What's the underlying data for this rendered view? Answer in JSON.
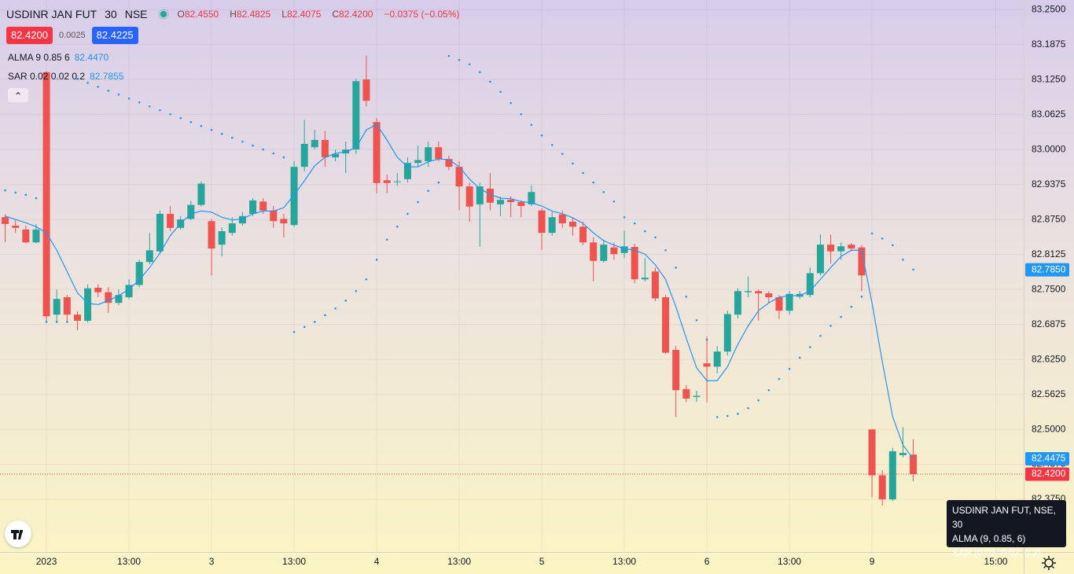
{
  "header": {
    "symbol": "USDINR JAN FUT",
    "interval": "30",
    "exchange": "NSE",
    "ohlc": [
      {
        "key": "O",
        "label": "82.4550"
      },
      {
        "key": "H",
        "label": "82.4825"
      },
      {
        "key": "L",
        "label": "82.4075"
      },
      {
        "key": "C",
        "label": "82.4200"
      }
    ],
    "change": "−0.0375 (−0.05%)"
  },
  "trade": {
    "sell": "82.4200",
    "spread": "0.0025",
    "buy": "82.4225"
  },
  "tooltip": [
    "USDINR JAN FUT, NSE, 30",
    "ALMA (9, 0.85, 6)",
    "SAR (0.02, 0.02, 0.2)"
  ],
  "chart_data": {
    "type": "candlestick",
    "up_color": "#26a69a",
    "down_color": "#ef5350",
    "grid": true,
    "xlim": [
      -4.5,
      94.7
    ],
    "ylim": [
      82.281,
      83.267
    ],
    "xticks": [
      {
        "value": 0,
        "label": "2023"
      },
      {
        "value": 8,
        "label": "13:00"
      },
      {
        "value": 16,
        "label": "3"
      },
      {
        "value": 24,
        "label": "13:00"
      },
      {
        "value": 32,
        "label": "4"
      },
      {
        "value": 40,
        "label": "13:00"
      },
      {
        "value": 48,
        "label": "5"
      },
      {
        "value": 56,
        "label": "13:00"
      },
      {
        "value": 64,
        "label": "6"
      },
      {
        "value": 72,
        "label": "13:00"
      },
      {
        "value": 80,
        "label": "9"
      },
      {
        "value": 92,
        "label": "15:00"
      }
    ],
    "yticks": [
      {
        "value": 83.25,
        "label": "83.2500"
      },
      {
        "value": 83.1875,
        "label": "83.1875"
      },
      {
        "value": 83.125,
        "label": "83.1250"
      },
      {
        "value": 83.0625,
        "label": "83.0625"
      },
      {
        "value": 83.0,
        "label": "83.0000"
      },
      {
        "value": 82.9375,
        "label": "82.9375"
      },
      {
        "value": 82.875,
        "label": "82.8750"
      },
      {
        "value": 82.8125,
        "label": "82.8125"
      },
      {
        "value": 82.75,
        "label": "82.7500"
      },
      {
        "value": 82.6875,
        "label": "82.6875"
      },
      {
        "value": 82.625,
        "label": "82.6250"
      },
      {
        "value": 82.5625,
        "label": "82.5625"
      },
      {
        "value": 82.5,
        "label": "82.5000"
      },
      {
        "value": 82.4375,
        "label": "82.4375"
      },
      {
        "value": 82.375,
        "label": "82.3750"
      }
    ],
    "x": [
      -4,
      -3,
      -2,
      -1,
      0,
      1,
      2,
      3,
      4,
      5,
      6,
      7,
      8,
      9,
      10,
      11,
      12,
      13,
      14,
      15,
      16,
      17,
      18,
      19,
      20,
      21,
      22,
      23,
      24,
      25,
      26,
      27,
      28,
      29,
      30,
      31,
      32,
      33,
      34,
      35,
      36,
      37,
      38,
      39,
      40,
      41,
      42,
      43,
      44,
      45,
      46,
      47,
      48,
      49,
      50,
      51,
      52,
      53,
      54,
      55,
      56,
      57,
      58,
      59,
      60,
      61,
      62,
      63,
      64,
      65,
      66,
      67,
      68,
      69,
      70,
      71,
      72,
      73,
      74,
      75,
      76,
      77,
      78,
      79,
      80,
      81,
      82,
      83,
      84
    ],
    "open": [
      82.879,
      82.864,
      82.857,
      82.834,
      83.138,
      82.705,
      82.736,
      82.705,
      82.694,
      82.753,
      82.745,
      82.726,
      82.736,
      82.758,
      82.799,
      82.818,
      82.885,
      82.86,
      82.876,
      82.901,
      82.872,
      82.83,
      82.851,
      82.868,
      82.885,
      82.907,
      82.891,
      82.876,
      82.865,
      82.969,
      83.004,
      83.017,
      82.986,
      82.993,
      83.0,
      83.125,
      83.049,
      82.945,
      82.942,
      82.947,
      82.976,
      82.979,
      83.004,
      82.983,
      82.969,
      82.934,
      82.902,
      82.93,
      82.902,
      82.91,
      82.906,
      82.902,
      82.891,
      82.851,
      82.884,
      82.871,
      82.862,
      82.834,
      82.801,
      82.825,
      82.815,
      82.826,
      82.768,
      82.782,
      82.736,
      82.642,
      82.572,
      82.558,
      82.618,
      82.612,
      82.639,
      82.705,
      82.745,
      82.747,
      82.743,
      82.736,
      82.712,
      82.737,
      82.74,
      82.779,
      82.83,
      82.818,
      82.83,
      82.825,
      82.5,
      82.418,
      82.375,
      82.454,
      82.455
    ],
    "high": [
      82.884,
      82.874,
      82.864,
      82.867,
      83.14,
      82.75,
      82.74,
      82.711,
      82.759,
      82.759,
      82.754,
      82.75,
      82.768,
      82.803,
      82.851,
      82.891,
      82.899,
      82.881,
      82.908,
      82.943,
      82.876,
      82.861,
      82.879,
      82.888,
      82.913,
      82.913,
      82.899,
      82.885,
      82.979,
      83.053,
      83.035,
      83.033,
      83.0,
      83.014,
      83.126,
      83.168,
      83.056,
      82.955,
      82.958,
      82.986,
      83.007,
      83.014,
      83.014,
      82.989,
      82.979,
      82.941,
      82.941,
      82.958,
      82.916,
      82.916,
      82.909,
      82.936,
      82.895,
      82.888,
      82.891,
      82.879,
      82.871,
      82.843,
      82.839,
      82.834,
      82.855,
      82.832,
      82.806,
      82.789,
      82.74,
      82.649,
      82.579,
      82.569,
      82.666,
      82.649,
      82.712,
      82.752,
      82.773,
      82.75,
      82.747,
      82.74,
      82.747,
      82.747,
      82.789,
      82.848,
      82.848,
      82.834,
      82.833,
      82.829,
      82.5,
      82.427,
      82.467,
      82.504,
      82.4825
    ],
    "low": [
      82.834,
      82.851,
      82.832,
      82.832,
      82.691,
      82.691,
      82.691,
      82.677,
      82.691,
      82.736,
      82.708,
      82.722,
      82.733,
      82.754,
      82.795,
      82.813,
      82.854,
      82.857,
      82.874,
      82.898,
      82.775,
      82.809,
      82.846,
      82.864,
      82.881,
      82.885,
      82.86,
      82.843,
      82.862,
      82.961,
      83.0,
      82.969,
      82.979,
      82.958,
      82.992,
      83.077,
      82.922,
      82.922,
      82.935,
      82.941,
      82.969,
      82.969,
      82.979,
      82.963,
      82.891,
      82.871,
      82.826,
      82.891,
      82.881,
      82.879,
      82.879,
      82.899,
      82.82,
      82.846,
      82.86,
      82.846,
      82.829,
      82.764,
      82.798,
      82.803,
      82.806,
      82.761,
      82.764,
      82.729,
      82.635,
      82.522,
      82.549,
      82.549,
      82.548,
      82.6,
      82.632,
      82.698,
      82.736,
      82.694,
      82.726,
      82.697,
      82.705,
      82.733,
      82.736,
      82.775,
      82.796,
      82.803,
      82.818,
      82.747,
      82.379,
      82.364,
      82.372,
      82.45,
      82.4075
    ],
    "close": [
      82.867,
      82.86,
      82.834,
      82.857,
      82.702,
      82.733,
      82.705,
      82.694,
      82.752,
      82.745,
      82.726,
      82.74,
      82.758,
      82.799,
      82.82,
      82.885,
      82.86,
      82.875,
      82.901,
      82.939,
      82.823,
      82.854,
      82.868,
      82.881,
      82.909,
      82.891,
      82.872,
      82.868,
      82.969,
      83.01,
      83.017,
      82.986,
      82.992,
      83.0,
      83.122,
      83.087,
      82.94,
      82.94,
      82.943,
      82.976,
      82.981,
      83.004,
      82.983,
      82.969,
      82.934,
      82.898,
      82.934,
      82.905,
      82.91,
      82.906,
      82.899,
      82.924,
      82.851,
      82.879,
      82.868,
      82.862,
      82.834,
      82.801,
      82.83,
      82.813,
      82.827,
      82.768,
      82.771,
      82.734,
      82.637,
      82.57,
      82.555,
      82.56,
      82.612,
      82.639,
      82.706,
      82.747,
      82.747,
      82.743,
      82.736,
      82.712,
      82.742,
      82.742,
      82.779,
      82.83,
      82.818,
      82.827,
      82.823,
      82.775,
      82.418,
      82.375,
      82.461,
      82.458,
      82.42
    ],
    "overlays": [
      {
        "type": "line",
        "name": "ALMA 9 0.85 6",
        "last_label": "82.4470",
        "color": "#2196f3",
        "values": [
          82.881,
          82.875,
          82.869,
          82.862,
          82.851,
          82.82,
          82.782,
          82.744,
          82.725,
          82.723,
          82.73,
          82.739,
          82.75,
          82.767,
          82.789,
          82.815,
          82.846,
          82.868,
          82.885,
          82.89,
          82.888,
          82.879,
          82.874,
          82.876,
          82.885,
          82.89,
          82.89,
          82.896,
          82.919,
          82.944,
          82.971,
          82.986,
          82.993,
          82.996,
          83.003,
          83.035,
          83.045,
          83.017,
          82.986,
          82.969,
          82.969,
          82.978,
          82.983,
          82.982,
          82.969,
          82.947,
          82.93,
          82.92,
          82.913,
          82.912,
          82.907,
          82.905,
          82.899,
          82.89,
          82.885,
          82.878,
          82.868,
          82.851,
          82.837,
          82.829,
          82.823,
          82.82,
          82.813,
          82.794,
          82.768,
          82.719,
          82.663,
          82.61,
          82.587,
          82.587,
          82.612,
          82.652,
          82.685,
          82.712,
          82.726,
          82.736,
          82.739,
          82.739,
          82.747,
          82.768,
          82.789,
          82.809,
          82.82,
          82.82,
          82.726,
          82.621,
          82.523,
          82.472,
          82.447
        ]
      },
      {
        "type": "dots",
        "name": "SAR 0.02 0.02 0.2",
        "last_label": "82.7855",
        "color": "#2196f3",
        "values": [
          82.927,
          82.923,
          82.919,
          82.913,
          82.692,
          82.692,
          82.692,
          83.126,
          83.119,
          83.112,
          83.105,
          83.098,
          83.091,
          83.084,
          83.077,
          83.07,
          83.063,
          83.056,
          83.049,
          83.042,
          83.035,
          83.028,
          83.021,
          83.014,
          83.007,
          83.0,
          82.993,
          82.986,
          82.674,
          82.683,
          82.692,
          82.704,
          82.716,
          82.73,
          82.747,
          82.768,
          82.803,
          82.839,
          82.862,
          82.885,
          82.906,
          82.926,
          82.941,
          83.167,
          83.16,
          83.152,
          83.138,
          83.121,
          83.103,
          83.083,
          83.063,
          83.044,
          83.025,
          83.008,
          82.992,
          82.975,
          82.958,
          82.941,
          82.924,
          82.907,
          82.879,
          82.868,
          82.854,
          82.843,
          82.82,
          82.789,
          82.737,
          82.695,
          82.66,
          82.522,
          82.524,
          82.528,
          82.538,
          82.552,
          82.57,
          82.59,
          82.608,
          82.628,
          82.647,
          82.667,
          82.685,
          82.701,
          82.719,
          82.737,
          82.85,
          82.841,
          82.829,
          82.803,
          82.7855
        ]
      }
    ],
    "price_badges": [
      {
        "value": 82.785,
        "label": "82.7850",
        "color": "#2196f3"
      },
      {
        "value": 82.4475,
        "label": "82.4475",
        "color": "#2196f3"
      },
      {
        "value": 82.42,
        "label": "82.4200",
        "color": "#f23645"
      }
    ],
    "last_price": 82.42
  }
}
